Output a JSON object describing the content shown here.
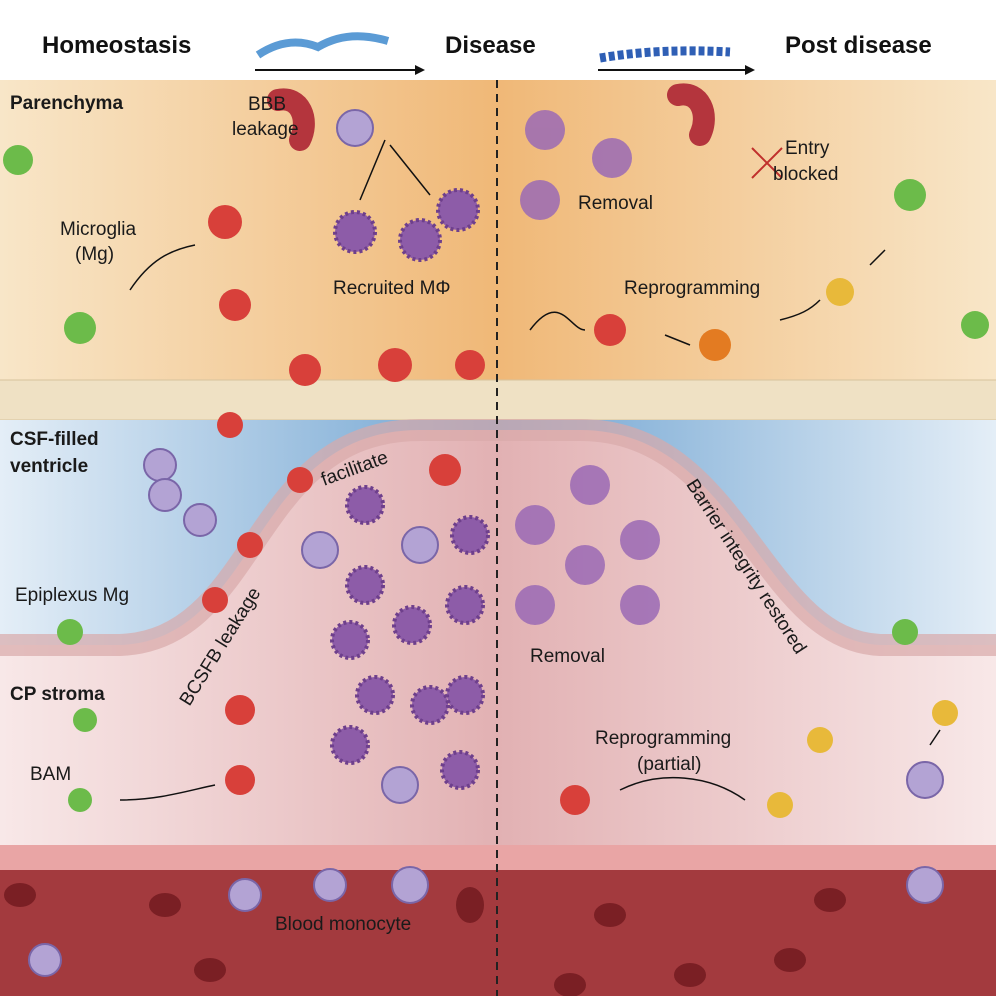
{
  "header": {
    "stages": [
      "Homeostasis",
      "Disease",
      "Post disease"
    ]
  },
  "regions": {
    "parenchyma": "Parenchyma",
    "csf_line1": "CSF-filled",
    "csf_line2": "ventricle",
    "cp_stroma": "CP stroma"
  },
  "labels": {
    "bbb_1": "BBB",
    "bbb_2": "leakage",
    "microglia_1": "Microglia",
    "microglia_2": "(Mg)",
    "recruited": "Recruited MΦ",
    "removal_top": "Removal",
    "entry_1": "Entry",
    "entry_2": "blocked",
    "reprogramming_top": "Reprogramming",
    "facilitate": "facilitate",
    "epiplexus": "Epiplexus Mg",
    "bcsfb": "BCSFB leakage",
    "barrier": "Barrier integrity restored",
    "removal_bottom": "Removal",
    "bam": "BAM",
    "reprog_partial_1": "Reprogramming",
    "reprog_partial_2": "(partial)",
    "blood_monocyte": "Blood monocyte"
  },
  "colors": {
    "parenchyma": "#f3c98f",
    "csf": "#8fb8dc",
    "stroma": "#f1d3d3",
    "blood": "#a33a3e",
    "activated_cell": "#d8403a",
    "homeostatic_cell": "#6cbb4a",
    "macrophage": "#8d5ca8",
    "reprogrammed_cell": "#e8b93a"
  }
}
